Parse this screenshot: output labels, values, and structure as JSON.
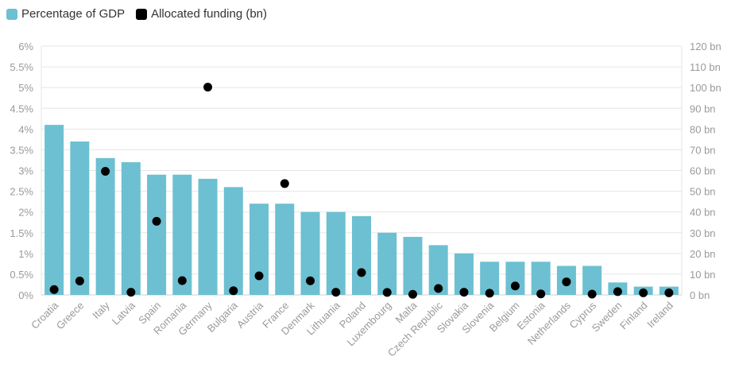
{
  "legend": {
    "bar_label": "Percentage of GDP",
    "dot_label": "Allocated funding (bn)"
  },
  "colors": {
    "bar": "#6cc0d1",
    "dot": "#000000",
    "grid": "#e6e6e6",
    "axis_text": "#9a9a9a"
  },
  "chart_data": {
    "type": "bar",
    "categories": [
      "Croatia",
      "Greece",
      "Italy",
      "Latvia",
      "Spain",
      "Romania",
      "Germany",
      "Bulgaria",
      "Austria",
      "France",
      "Denmark",
      "Lithuania",
      "Poland",
      "Luxembourg",
      "Malta",
      "Czech Republic",
      "Slovakia",
      "Slovenia",
      "Belgium",
      "Estonia",
      "Netherlands",
      "Cyprus",
      "Sweden",
      "Finland",
      "Ireland"
    ],
    "series": [
      {
        "name": "Percentage of GDP",
        "type": "bar",
        "axis": "left",
        "values": [
          4.1,
          3.7,
          3.3,
          3.2,
          2.9,
          2.9,
          2.8,
          2.6,
          2.2,
          2.2,
          2.0,
          2.0,
          1.9,
          1.5,
          1.4,
          1.2,
          1.0,
          0.8,
          0.8,
          0.8,
          0.7,
          0.7,
          0.3,
          0.2,
          0.2
        ]
      },
      {
        "name": "Allocated funding (bn)",
        "type": "scatter",
        "axis": "right",
        "values": [
          2.6,
          6.7,
          59.6,
          1.3,
          35.5,
          6.9,
          100.2,
          2.0,
          9.2,
          53.7,
          6.8,
          1.3,
          10.8,
          1.2,
          0.3,
          3.1,
          1.3,
          0.8,
          4.3,
          0.5,
          6.3,
          0.4,
          1.6,
          1.0,
          1.0
        ]
      }
    ],
    "y_left": {
      "ylim": [
        0,
        6
      ],
      "ticks": [
        "0%",
        "0.5%",
        "1%",
        "1.5%",
        "2%",
        "2.5%",
        "3%",
        "3.5%",
        "4%",
        "4.5%",
        "5%",
        "5.5%",
        "6%"
      ]
    },
    "y_right": {
      "ylim": [
        0,
        120
      ],
      "ticks": [
        "0 bn",
        "10 bn",
        "20 bn",
        "30 bn",
        "40 bn",
        "50 bn",
        "60 bn",
        "70 bn",
        "80 bn",
        "90 bn",
        "100 bn",
        "110 bn",
        "120 bn"
      ]
    },
    "grid": true,
    "legend_position": "top-left"
  }
}
